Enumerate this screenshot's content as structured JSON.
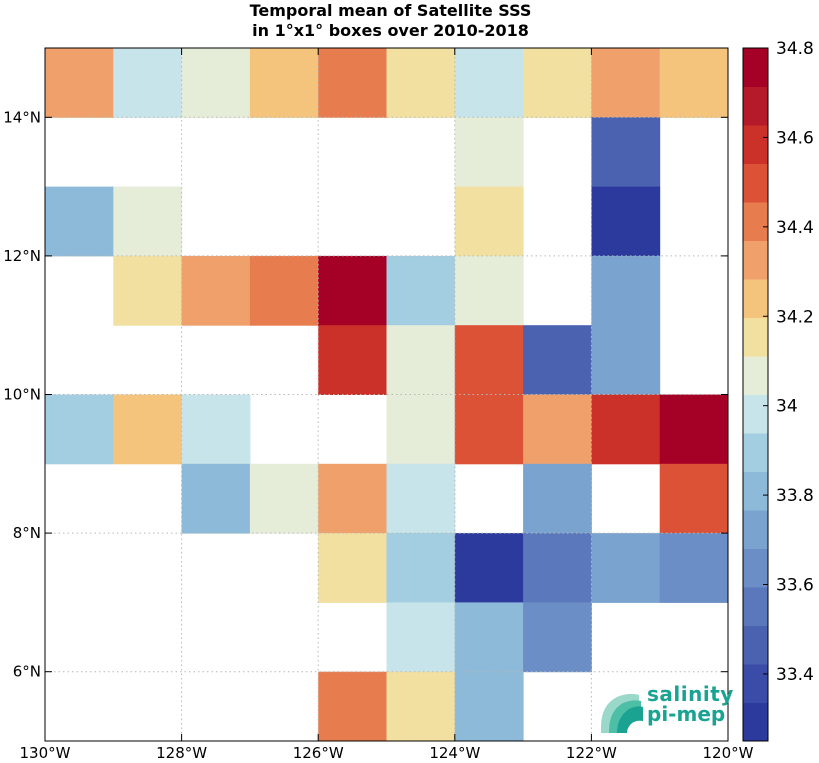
{
  "title": {
    "line1": "Temporal mean of Satellite SSS",
    "line2": "in 1°x1° boxes over 2010-2018"
  },
  "logo": {
    "line1": "salinity",
    "line2": "pi-mep"
  },
  "colors": {
    "nan": "#ffffff",
    "palette": [
      "#2b3a9c",
      "#3b4ca8",
      "#4a62b0",
      "#5a78bb",
      "#6a8ec5",
      "#7aa4cf",
      "#8cbad8",
      "#a3cde0",
      "#c7e4ea",
      "#e5ecd8",
      "#f2e0a0",
      "#f4c37c",
      "#f0a16b",
      "#e77c4e",
      "#dc5237",
      "#cc3129",
      "#b51a2a",
      "#a50026"
    ],
    "levels": [
      33.25,
      33.3,
      33.35,
      33.4,
      33.45,
      33.5,
      33.55,
      33.6,
      33.65,
      33.7,
      33.75,
      33.8,
      33.85,
      33.9,
      33.95,
      34.0,
      34.05,
      34.1,
      34.15,
      34.2,
      34.25,
      34.3,
      34.35,
      34.4,
      34.45,
      34.5,
      34.55,
      34.6,
      34.65,
      34.7,
      34.75,
      34.8
    ]
  },
  "chart_data": {
    "type": "heatmap",
    "title": "Temporal mean of Satellite SSS in 1°x1° boxes over 2010-2018",
    "xlabel": "",
    "ylabel": "",
    "xlim": [
      -130,
      -120
    ],
    "ylim": [
      5,
      15
    ],
    "grid": true,
    "x_ticks": [
      -130,
      -128,
      -126,
      -124,
      -122,
      -120
    ],
    "x_tick_labels": [
      "130°W",
      "128°W",
      "126°W",
      "124°W",
      "122°W",
      "120°W"
    ],
    "y_ticks": [
      6,
      8,
      10,
      12,
      14
    ],
    "y_tick_labels": [
      "6°N",
      "8°N",
      "10°N",
      "12°N",
      "14°N"
    ],
    "colorbar": {
      "range": [
        33.25,
        34.8
      ],
      "ticks": [
        33.4,
        33.6,
        33.8,
        34,
        34.2,
        34.4,
        34.6,
        34.8
      ],
      "tick_labels": [
        "33.4",
        "33.6",
        "33.8",
        "34",
        "34.2",
        "34.4",
        "34.6",
        "34.8"
      ]
    },
    "cell_lon_west_edges": [
      -130,
      -129,
      -128,
      -127,
      -126,
      -125,
      -124,
      -123,
      -122,
      -121
    ],
    "cell_lat_north_edges": [
      15,
      14,
      13,
      12,
      11,
      10,
      9,
      8,
      7,
      6
    ],
    "values": [
      [
        34.3,
        33.98,
        34.1,
        34.2,
        34.4,
        34.15,
        33.98,
        34.15,
        34.3,
        34.2
      ],
      [
        null,
        null,
        null,
        null,
        null,
        null,
        34.1,
        null,
        33.45,
        null
      ],
      [
        33.8,
        34.1,
        null,
        null,
        null,
        null,
        34.15,
        null,
        33.3,
        null
      ],
      [
        null,
        34.15,
        34.3,
        34.4,
        34.8,
        33.9,
        34.1,
        null,
        33.7,
        null
      ],
      [
        null,
        null,
        null,
        null,
        34.55,
        34.1,
        34.5,
        33.45,
        33.7,
        null
      ],
      [
        33.9,
        34.2,
        33.98,
        null,
        null,
        34.1,
        34.5,
        34.3,
        34.55,
        34.8
      ],
      [
        null,
        null,
        33.8,
        34.1,
        34.3,
        33.98,
        null,
        33.7,
        null,
        34.5
      ],
      [
        null,
        null,
        null,
        null,
        34.15,
        33.9,
        33.3,
        33.55,
        33.7,
        33.65
      ],
      [
        null,
        null,
        null,
        null,
        null,
        33.98,
        33.8,
        33.65,
        null,
        null
      ],
      [
        null,
        null,
        null,
        null,
        34.4,
        34.15,
        33.8,
        null,
        null,
        null
      ]
    ]
  }
}
